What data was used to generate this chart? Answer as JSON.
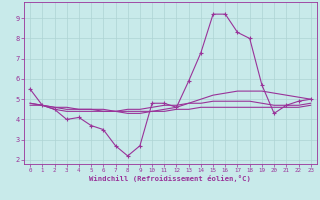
{
  "title": "",
  "xlabel": "Windchill (Refroidissement éolien,°C)",
  "ylabel": "",
  "bg_color": "#c8eaea",
  "line_color": "#993399",
  "grid_color": "#aed4d4",
  "xlim": [
    -0.5,
    23.5
  ],
  "ylim": [
    1.8,
    9.8
  ],
  "yticks": [
    2,
    3,
    4,
    5,
    6,
    7,
    8,
    9
  ],
  "xticks": [
    0,
    1,
    2,
    3,
    4,
    5,
    6,
    7,
    8,
    9,
    10,
    11,
    12,
    13,
    14,
    15,
    16,
    17,
    18,
    19,
    20,
    21,
    22,
    23
  ],
  "lines": [
    {
      "x": [
        0,
        1,
        2,
        3,
        4,
        5,
        6,
        7,
        8,
        9,
        10,
        11,
        12,
        13,
        14,
        15,
        16,
        17,
        18,
        19,
        20,
        21,
        22,
        23
      ],
      "y": [
        5.5,
        4.7,
        4.5,
        4.0,
        4.1,
        3.7,
        3.5,
        2.7,
        2.2,
        2.7,
        4.8,
        4.8,
        4.6,
        5.9,
        7.3,
        9.2,
        9.2,
        8.3,
        8.0,
        5.7,
        4.3,
        4.7,
        4.9,
        5.0
      ],
      "has_marker": true
    },
    {
      "x": [
        0,
        1,
        2,
        3,
        4,
        5,
        6,
        7,
        8,
        9,
        10,
        11,
        12,
        13,
        14,
        15,
        16,
        17,
        18,
        19,
        20,
        21,
        22,
        23
      ],
      "y": [
        4.8,
        4.7,
        4.5,
        4.4,
        4.4,
        4.4,
        4.4,
        4.4,
        4.5,
        4.5,
        4.6,
        4.7,
        4.7,
        4.8,
        4.8,
        4.9,
        4.9,
        4.9,
        4.9,
        4.8,
        4.7,
        4.7,
        4.7,
        4.8
      ],
      "has_marker": false
    },
    {
      "x": [
        0,
        1,
        2,
        3,
        4,
        5,
        6,
        7,
        8,
        9,
        10,
        11,
        12,
        13,
        14,
        15,
        16,
        17,
        18,
        19,
        20,
        21,
        22,
        23
      ],
      "y": [
        4.8,
        4.7,
        4.6,
        4.5,
        4.5,
        4.5,
        4.4,
        4.4,
        4.3,
        4.3,
        4.4,
        4.5,
        4.6,
        4.8,
        5.0,
        5.2,
        5.3,
        5.4,
        5.4,
        5.4,
        5.3,
        5.2,
        5.1,
        5.0
      ],
      "has_marker": false
    },
    {
      "x": [
        0,
        1,
        2,
        3,
        4,
        5,
        6,
        7,
        8,
        9,
        10,
        11,
        12,
        13,
        14,
        15,
        16,
        17,
        18,
        19,
        20,
        21,
        22,
        23
      ],
      "y": [
        4.7,
        4.7,
        4.6,
        4.6,
        4.5,
        4.5,
        4.5,
        4.4,
        4.4,
        4.4,
        4.4,
        4.4,
        4.5,
        4.5,
        4.6,
        4.6,
        4.6,
        4.6,
        4.6,
        4.6,
        4.6,
        4.6,
        4.6,
        4.7
      ],
      "has_marker": false
    }
  ]
}
